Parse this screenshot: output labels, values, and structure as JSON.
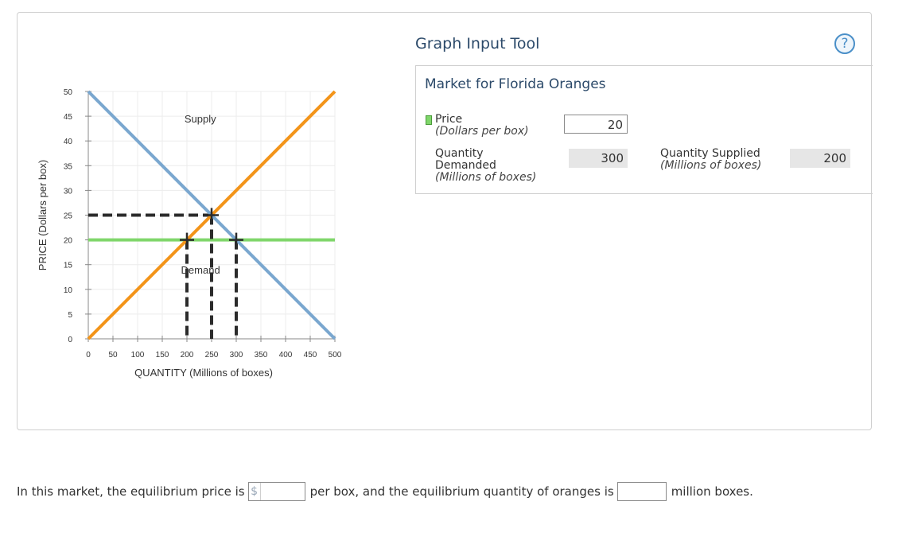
{
  "graph": {
    "y_axis_label": "PRICE (Dollars per box)",
    "x_axis_label": "QUANTITY (Millions of boxes)",
    "y_ticks": [
      "0",
      "5",
      "10",
      "15",
      "20",
      "25",
      "30",
      "35",
      "40",
      "45",
      "50"
    ],
    "x_ticks": [
      "0",
      "50",
      "100",
      "150",
      "200",
      "250",
      "300",
      "350",
      "400",
      "450",
      "500"
    ],
    "supply_label": "Supply",
    "demand_label": "Demand",
    "colors": {
      "supply": "#f39419",
      "demand": "#7aa7cf",
      "price_line": "#7fd66a",
      "dashed": "#2b2b2b",
      "grid": "#ececec"
    }
  },
  "chart_data": {
    "type": "line",
    "xlim": [
      0,
      500
    ],
    "ylim": [
      0,
      50
    ],
    "series": [
      {
        "name": "Supply",
        "x": [
          0,
          500
        ],
        "y": [
          0,
          50
        ]
      },
      {
        "name": "Demand",
        "x": [
          0,
          500
        ],
        "y": [
          50,
          0
        ]
      }
    ],
    "price_line": 20,
    "equilibrium_marker": {
      "x": 250,
      "y": 25
    },
    "price_markers": [
      {
        "x": 200,
        "y": 20
      },
      {
        "x": 300,
        "y": 20
      }
    ]
  },
  "tool": {
    "title": "Graph Input Tool",
    "help_symbol": "?",
    "market_title": "Market for Florida Oranges",
    "price_label": "Price",
    "price_units": "(Dollars per box)",
    "price_value": "20",
    "qd_label_1": "Quantity",
    "qd_label_2": "Demanded",
    "qd_units": "(Millions of boxes)",
    "qd_value": "300",
    "qs_label": "Quantity Supplied",
    "qs_units": "(Millions of boxes)",
    "qs_value": "200"
  },
  "question": {
    "part1": "In this market, the equilibrium price is",
    "currency": "$",
    "part2": "per box, and the equilibrium quantity of oranges is",
    "part3": "million boxes."
  }
}
